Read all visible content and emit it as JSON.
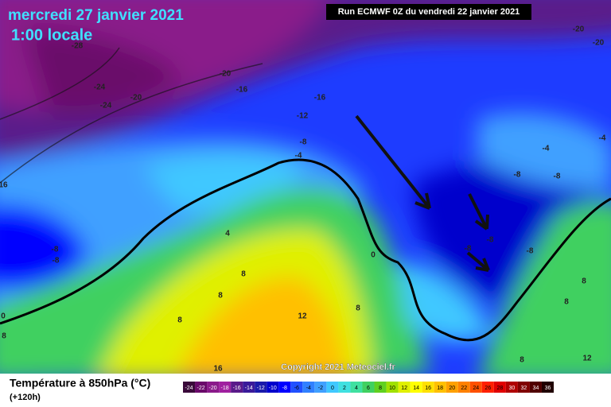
{
  "header": {
    "date": "mercredi 27 janvier 2021",
    "time": "1:00 locale",
    "run": "Run ECMWF 0Z du vendredi 22 janvier 2021"
  },
  "copyright": "Copyright 2021 Meteociel.fr",
  "legend": {
    "title": "Température à 850hPa (°C)",
    "lead": "(+120h)",
    "ticks": [
      -24,
      -22,
      -20,
      -18,
      -16,
      -14,
      -12,
      -10,
      -8,
      -6,
      -4,
      -2,
      0,
      2,
      4,
      6,
      8,
      10,
      12,
      14,
      16,
      18,
      20,
      22,
      24,
      26,
      28,
      30,
      32,
      34,
      36
    ],
    "colors": [
      "#3a0a3a",
      "#6a0a6a",
      "#8a1a8a",
      "#a020a0",
      "#5a1a8a",
      "#3a1a9a",
      "#1a1aaa",
      "#0000cc",
      "#0000ff",
      "#2050ff",
      "#3080ff",
      "#40a0ff",
      "#40c8ff",
      "#40e0e0",
      "#40e0a0",
      "#40d060",
      "#60d020",
      "#a0e000",
      "#e0f000",
      "#ffff00",
      "#ffe000",
      "#ffc000",
      "#ffa000",
      "#ff8000",
      "#ff5000",
      "#ff2000",
      "#e00000",
      "#b00000",
      "#800000",
      "#500000",
      "#200000"
    ]
  },
  "map_labels": [
    "-28",
    "-24",
    "-24",
    "-20",
    "-20",
    "-16",
    "-16",
    "-12",
    "-8",
    "-4",
    "-20",
    "-20",
    "-4",
    "-4",
    "-8",
    "-8",
    "-8",
    "-8",
    "-8",
    "-8",
    "-8",
    "4",
    "0",
    "8",
    "8",
    "8",
    "12",
    "8",
    "8",
    "8",
    "8",
    "12",
    "16",
    "16",
    "0",
    "8"
  ]
}
